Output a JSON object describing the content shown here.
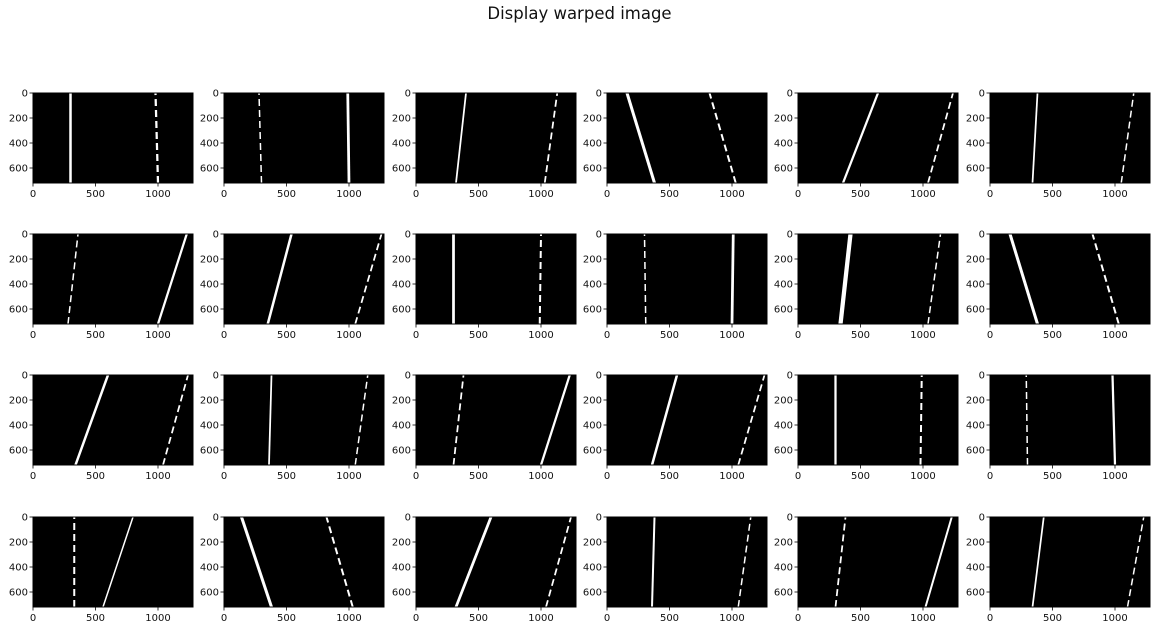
{
  "figure": {
    "title": "Display warped image"
  },
  "chart_data": [
    {
      "type": "image",
      "panel": 1,
      "image": "binary warped lane image",
      "lanes": [
        {
          "side": "left",
          "base_x": 300,
          "top_x": 300,
          "thickness": 20
        },
        {
          "side": "right",
          "base_x": 1000,
          "top_x": 980,
          "thickness": 18,
          "dashed": true
        }
      ],
      "x_ticks": [
        0,
        500,
        1000
      ],
      "y_ticks": [
        0,
        200,
        400,
        600
      ],
      "xlim": [
        0,
        1280
      ],
      "ylim": [
        720,
        0
      ]
    },
    {
      "type": "image",
      "panel": 2,
      "image": "binary warped lane image",
      "lanes": [
        {
          "side": "left",
          "base_x": 300,
          "top_x": 280,
          "thickness": 12,
          "dashed": true
        },
        {
          "side": "right",
          "base_x": 1000,
          "top_x": 990,
          "thickness": 22
        }
      ],
      "x_ticks": [
        0,
        500,
        1000
      ],
      "y_ticks": [
        0,
        200,
        400,
        600
      ],
      "xlim": [
        0,
        1280
      ],
      "ylim": [
        720,
        0
      ]
    },
    {
      "type": "image",
      "panel": 3,
      "image": "binary warped lane image",
      "lanes": [
        {
          "side": "left",
          "base_x": 320,
          "top_x": 400,
          "thickness": 14
        },
        {
          "side": "right",
          "base_x": 1030,
          "top_x": 1130,
          "thickness": 14,
          "dashed": true
        }
      ],
      "x_ticks": [
        0,
        500,
        1000
      ],
      "y_ticks": [
        0,
        200,
        400,
        600
      ],
      "xlim": [
        0,
        1280
      ],
      "ylim": [
        720,
        0
      ]
    },
    {
      "type": "image",
      "panel": 4,
      "image": "binary warped lane image",
      "lanes": [
        {
          "side": "left",
          "base_x": 380,
          "top_x": 160,
          "thickness": 24
        },
        {
          "side": "right",
          "base_x": 1030,
          "top_x": 820,
          "thickness": 16,
          "dashed": true
        }
      ],
      "x_ticks": [
        0,
        500,
        1000
      ],
      "y_ticks": [
        0,
        200,
        400,
        600
      ],
      "xlim": [
        0,
        1280
      ],
      "ylim": [
        720,
        0
      ]
    },
    {
      "type": "image",
      "panel": 5,
      "image": "binary warped lane image",
      "lanes": [
        {
          "side": "left",
          "base_x": 360,
          "top_x": 640,
          "thickness": 18
        },
        {
          "side": "right",
          "base_x": 1040,
          "top_x": 1240,
          "thickness": 14,
          "dashed": true
        }
      ],
      "x_ticks": [
        0,
        500,
        1000
      ],
      "y_ticks": [
        0,
        200,
        400,
        600
      ],
      "xlim": [
        0,
        1280
      ],
      "ylim": [
        720,
        0
      ]
    },
    {
      "type": "image",
      "panel": 6,
      "image": "binary warped lane image",
      "lanes": [
        {
          "side": "left",
          "base_x": 340,
          "top_x": 380,
          "thickness": 14
        },
        {
          "side": "right",
          "base_x": 1050,
          "top_x": 1150,
          "thickness": 12,
          "dashed": true
        }
      ],
      "x_ticks": [
        0,
        500,
        1000
      ],
      "y_ticks": [
        0,
        200,
        400,
        600
      ],
      "xlim": [
        0,
        1280
      ],
      "ylim": [
        720,
        0
      ]
    },
    {
      "type": "image",
      "panel": 7,
      "image": "binary warped lane image",
      "lanes": [
        {
          "side": "left",
          "base_x": 280,
          "top_x": 360,
          "thickness": 12,
          "dashed": true
        },
        {
          "side": "right",
          "base_x": 1000,
          "top_x": 1230,
          "thickness": 18
        }
      ],
      "x_ticks": [
        0,
        500,
        1000
      ],
      "y_ticks": [
        0,
        200,
        400,
        600
      ],
      "xlim": [
        0,
        1280
      ],
      "ylim": [
        720,
        0
      ]
    },
    {
      "type": "image",
      "panel": 8,
      "image": "binary warped lane image",
      "lanes": [
        {
          "side": "left",
          "base_x": 350,
          "top_x": 540,
          "thickness": 20
        },
        {
          "side": "right",
          "base_x": 1050,
          "top_x": 1260,
          "thickness": 14,
          "dashed": true
        }
      ],
      "x_ticks": [
        0,
        500,
        1000
      ],
      "y_ticks": [
        0,
        200,
        400,
        600
      ],
      "xlim": [
        0,
        1280
      ],
      "ylim": [
        720,
        0
      ]
    },
    {
      "type": "image",
      "panel": 9,
      "image": "binary warped lane image",
      "lanes": [
        {
          "side": "left",
          "base_x": 300,
          "top_x": 300,
          "thickness": 22
        },
        {
          "side": "right",
          "base_x": 990,
          "top_x": 1000,
          "thickness": 16,
          "dashed": true
        }
      ],
      "x_ticks": [
        0,
        500,
        1000
      ],
      "y_ticks": [
        0,
        200,
        400,
        600
      ],
      "xlim": [
        0,
        1280
      ],
      "ylim": [
        720,
        0
      ]
    },
    {
      "type": "image",
      "panel": 10,
      "image": "binary warped lane image",
      "lanes": [
        {
          "side": "left",
          "base_x": 310,
          "top_x": 300,
          "thickness": 12,
          "dashed": true
        },
        {
          "side": "right",
          "base_x": 1000,
          "top_x": 1010,
          "thickness": 22
        }
      ],
      "x_ticks": [
        0,
        500,
        1000
      ],
      "y_ticks": [
        0,
        200,
        400,
        600
      ],
      "xlim": [
        0,
        1280
      ],
      "ylim": [
        720,
        0
      ]
    },
    {
      "type": "image",
      "panel": 11,
      "image": "binary warped lane image",
      "lanes": [
        {
          "side": "left",
          "base_x": 340,
          "top_x": 420,
          "thickness": 34
        },
        {
          "side": "right",
          "base_x": 1040,
          "top_x": 1140,
          "thickness": 12,
          "dashed": true
        }
      ],
      "x_ticks": [
        0,
        500,
        1000
      ],
      "y_ticks": [
        0,
        200,
        400,
        600
      ],
      "xlim": [
        0,
        1280
      ],
      "ylim": [
        720,
        0
      ]
    },
    {
      "type": "image",
      "panel": 12,
      "image": "binary warped lane image",
      "lanes": [
        {
          "side": "left",
          "base_x": 380,
          "top_x": 160,
          "thickness": 24
        },
        {
          "side": "right",
          "base_x": 1030,
          "top_x": 820,
          "thickness": 16,
          "dashed": true
        }
      ],
      "x_ticks": [
        0,
        500,
        1000
      ],
      "y_ticks": [
        0,
        200,
        400,
        600
      ],
      "xlim": [
        0,
        1280
      ],
      "ylim": [
        720,
        0
      ]
    },
    {
      "type": "image",
      "panel": 13,
      "image": "binary warped lane image",
      "lanes": [
        {
          "side": "left",
          "base_x": 340,
          "top_x": 600,
          "thickness": 20
        },
        {
          "side": "right",
          "base_x": 1040,
          "top_x": 1240,
          "thickness": 14,
          "dashed": true
        }
      ],
      "x_ticks": [
        0,
        500,
        1000
      ],
      "y_ticks": [
        0,
        200,
        400,
        600
      ],
      "xlim": [
        0,
        1280
      ],
      "ylim": [
        720,
        0
      ]
    },
    {
      "type": "image",
      "panel": 14,
      "image": "binary warped lane image",
      "lanes": [
        {
          "side": "left",
          "base_x": 360,
          "top_x": 380,
          "thickness": 14
        },
        {
          "side": "right",
          "base_x": 1050,
          "top_x": 1150,
          "thickness": 12,
          "dashed": true
        }
      ],
      "x_ticks": [
        0,
        500,
        1000
      ],
      "y_ticks": [
        0,
        200,
        400,
        600
      ],
      "xlim": [
        0,
        1280
      ],
      "ylim": [
        720,
        0
      ]
    },
    {
      "type": "image",
      "panel": 15,
      "image": "binary warped lane image",
      "lanes": [
        {
          "side": "left",
          "base_x": 300,
          "top_x": 380,
          "thickness": 14,
          "dashed": true
        },
        {
          "side": "right",
          "base_x": 1000,
          "top_x": 1230,
          "thickness": 18
        }
      ],
      "x_ticks": [
        0,
        500,
        1000
      ],
      "y_ticks": [
        0,
        200,
        400,
        600
      ],
      "xlim": [
        0,
        1280
      ],
      "ylim": [
        720,
        0
      ]
    },
    {
      "type": "image",
      "panel": 16,
      "image": "binary warped lane image",
      "lanes": [
        {
          "side": "left",
          "base_x": 360,
          "top_x": 560,
          "thickness": 20
        },
        {
          "side": "right",
          "base_x": 1050,
          "top_x": 1260,
          "thickness": 14,
          "dashed": true
        }
      ],
      "x_ticks": [
        0,
        500,
        1000
      ],
      "y_ticks": [
        0,
        200,
        400,
        600
      ],
      "xlim": [
        0,
        1280
      ],
      "ylim": [
        720,
        0
      ]
    },
    {
      "type": "image",
      "panel": 17,
      "image": "binary warped lane image",
      "lanes": [
        {
          "side": "left",
          "base_x": 300,
          "top_x": 300,
          "thickness": 18
        },
        {
          "side": "right",
          "base_x": 980,
          "top_x": 990,
          "thickness": 16,
          "dashed": true
        }
      ],
      "x_ticks": [
        0,
        500,
        1000
      ],
      "y_ticks": [
        0,
        200,
        400,
        600
      ],
      "xlim": [
        0,
        1280
      ],
      "ylim": [
        720,
        0
      ]
    },
    {
      "type": "image",
      "panel": 18,
      "image": "binary warped lane image",
      "lanes": [
        {
          "side": "left",
          "base_x": 300,
          "top_x": 290,
          "thickness": 10,
          "dashed": true
        },
        {
          "side": "right",
          "base_x": 1000,
          "top_x": 980,
          "thickness": 18
        }
      ],
      "x_ticks": [
        0,
        500,
        1000
      ],
      "y_ticks": [
        0,
        200,
        400,
        600
      ],
      "xlim": [
        0,
        1280
      ],
      "ylim": [
        720,
        0
      ]
    },
    {
      "type": "image",
      "panel": 19,
      "image": "binary warped lane image",
      "lanes": [
        {
          "side": "left",
          "base_x": 330,
          "top_x": 330,
          "thickness": 16,
          "dashed": true
        },
        {
          "side": "right",
          "base_x": 560,
          "top_x": 800,
          "thickness": 8
        }
      ],
      "x_ticks": [
        0,
        500,
        1000
      ],
      "y_ticks": [
        0,
        200,
        400,
        600
      ],
      "xlim": [
        0,
        1280
      ],
      "ylim": [
        720,
        0
      ]
    },
    {
      "type": "image",
      "panel": 20,
      "image": "binary warped lane image",
      "lanes": [
        {
          "side": "left",
          "base_x": 380,
          "top_x": 140,
          "thickness": 24
        },
        {
          "side": "right",
          "base_x": 1030,
          "top_x": 820,
          "thickness": 16,
          "dashed": true
        }
      ],
      "x_ticks": [
        0,
        500,
        1000
      ],
      "y_ticks": [
        0,
        200,
        400,
        600
      ],
      "xlim": [
        0,
        1280
      ],
      "ylim": [
        720,
        0
      ]
    },
    {
      "type": "image",
      "panel": 21,
      "image": "binary warped lane image",
      "lanes": [
        {
          "side": "left",
          "base_x": 320,
          "top_x": 600,
          "thickness": 22
        },
        {
          "side": "right",
          "base_x": 1040,
          "top_x": 1240,
          "thickness": 14,
          "dashed": true
        }
      ],
      "x_ticks": [
        0,
        500,
        1000
      ],
      "y_ticks": [
        0,
        200,
        400,
        600
      ],
      "xlim": [
        0,
        1280
      ],
      "ylim": [
        720,
        0
      ]
    },
    {
      "type": "image",
      "panel": 22,
      "image": "binary warped lane image",
      "lanes": [
        {
          "side": "left",
          "base_x": 360,
          "top_x": 380,
          "thickness": 16
        },
        {
          "side": "right",
          "base_x": 1050,
          "top_x": 1150,
          "thickness": 12,
          "dashed": true
        }
      ],
      "x_ticks": [
        0,
        500,
        1000
      ],
      "y_ticks": [
        0,
        200,
        400,
        600
      ],
      "xlim": [
        0,
        1280
      ],
      "ylim": [
        720,
        0
      ]
    },
    {
      "type": "image",
      "panel": 23,
      "image": "binary warped lane image",
      "lanes": [
        {
          "side": "left",
          "base_x": 300,
          "top_x": 380,
          "thickness": 14,
          "dashed": true
        },
        {
          "side": "right",
          "base_x": 1020,
          "top_x": 1230,
          "thickness": 16
        }
      ],
      "x_ticks": [
        0,
        500,
        1000
      ],
      "y_ticks": [
        0,
        200,
        400,
        600
      ],
      "xlim": [
        0,
        1280
      ],
      "ylim": [
        720,
        0
      ]
    },
    {
      "type": "image",
      "panel": 24,
      "image": "binary warped lane image",
      "lanes": [
        {
          "side": "left",
          "base_x": 340,
          "top_x": 430,
          "thickness": 14
        },
        {
          "side": "right",
          "base_x": 1100,
          "top_x": 1230,
          "thickness": 10,
          "dashed": true
        }
      ],
      "x_ticks": [
        0,
        500,
        1000
      ],
      "y_ticks": [
        0,
        200,
        400,
        600
      ],
      "xlim": [
        0,
        1280
      ],
      "ylim": [
        720,
        0
      ]
    }
  ]
}
